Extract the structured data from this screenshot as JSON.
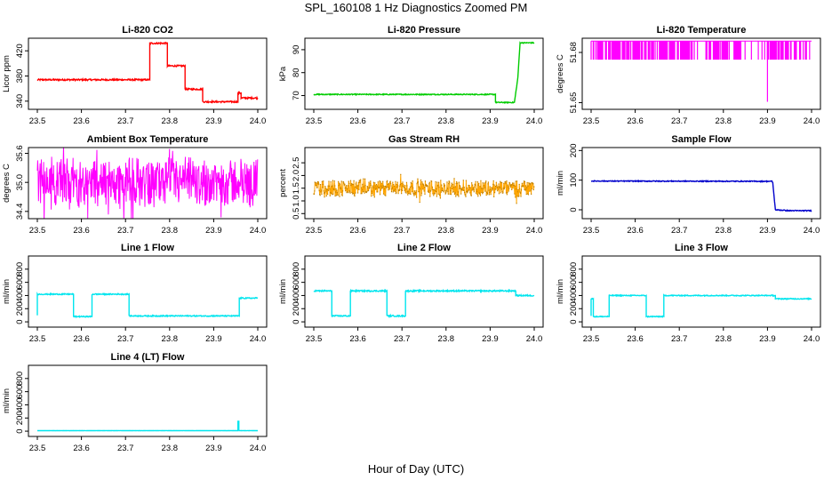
{
  "figure": {
    "title": "SPL_160108  1 Hz Diagnostics Zoomed PM",
    "xlabel": "Hour of Day (UTC)"
  },
  "chart_data": [
    {
      "type": "line",
      "title": "Li-820 CO2",
      "ylabel": "Licor ppm",
      "color": "#ff0000",
      "xlim": [
        23.5,
        24.0
      ],
      "ylim": [
        327,
        440
      ],
      "xticks": [
        "23.5",
        "23.6",
        "23.7",
        "23.8",
        "23.9",
        "24.0"
      ],
      "yticks": [
        340,
        380,
        420
      ],
      "series": [
        {
          "x": [
            23.5,
            23.755,
            23.755,
            23.795,
            23.795,
            23.835,
            23.835,
            23.875,
            23.875,
            23.955,
            23.955,
            23.962,
            23.962,
            24.0
          ],
          "y": [
            374,
            374,
            432,
            432,
            396,
            396,
            359,
            359,
            339,
            339,
            353,
            353,
            345,
            345
          ],
          "noise": 1.2
        }
      ]
    },
    {
      "type": "line",
      "title": "Li-820 Pressure",
      "ylabel": "kPa",
      "color": "#00cc00",
      "xlim": [
        23.5,
        24.0
      ],
      "ylim": [
        64,
        95
      ],
      "xticks": [
        "23.5",
        "23.6",
        "23.7",
        "23.8",
        "23.9",
        "24.0"
      ],
      "yticks": [
        70,
        80,
        90
      ],
      "series": [
        {
          "x": [
            23.5,
            23.912,
            23.912,
            23.955,
            23.963,
            23.968,
            24.0
          ],
          "y": [
            70.5,
            70.5,
            67,
            67,
            78,
            93,
            93
          ],
          "noise": 0.2
        }
      ]
    },
    {
      "type": "line",
      "title": "Li-820 Temperature",
      "ylabel": "degrees C",
      "color": "#ff00ff",
      "xlim": [
        23.5,
        24.0
      ],
      "ylim": [
        51.646,
        51.6885
      ],
      "xticks": [
        "23.5",
        "23.6",
        "23.7",
        "23.8",
        "23.9",
        "24.0"
      ],
      "yticks": [
        "51.65",
        "51.68"
      ],
      "series": [
        {
          "pattern": "flicker",
          "base": 51.6868,
          "low": 51.6757,
          "spike_at": 23.9,
          "spike_value": 51.6505
        }
      ]
    },
    {
      "type": "line",
      "title": "Ambient Box Temperature",
      "ylabel": "degrees C",
      "color": "#ff00ff",
      "xlim": [
        23.5,
        24.0
      ],
      "ylim": [
        34.25,
        35.72
      ],
      "xticks": [
        "23.5",
        "23.6",
        "23.7",
        "23.8",
        "23.9",
        "24.0"
      ],
      "yticks": [
        "34.4",
        "35.0",
        "35.6"
      ],
      "series": [
        {
          "pattern": "band",
          "center": 35.0,
          "amplitude": 0.45
        }
      ]
    },
    {
      "type": "line",
      "title": "Gas Stream RH",
      "ylabel": "percent",
      "color": "#ffa500",
      "xlim": [
        23.5,
        24.0
      ],
      "ylim": [
        0.3,
        3.1
      ],
      "xticks": [
        "23.5",
        "23.6",
        "23.7",
        "23.8",
        "23.9",
        "24.0"
      ],
      "yticks": [
        "0.5",
        "1.0",
        "1.5",
        "2.0",
        "2.5"
      ],
      "series": [
        {
          "pattern": "band",
          "center": 1.5,
          "amplitude": 0.3,
          "dots": true
        }
      ]
    },
    {
      "type": "line",
      "title": "Sample Flow",
      "ylabel": "ml/min",
      "color": "#0000cc",
      "xlim": [
        23.5,
        24.0
      ],
      "ylim": [
        -30,
        210
      ],
      "xticks": [
        "23.5",
        "23.6",
        "23.7",
        "23.8",
        "23.9",
        "24.0"
      ],
      "yticks": [
        0,
        100,
        200
      ],
      "series": [
        {
          "x": [
            23.5,
            23.91,
            23.912,
            23.918,
            23.95,
            24.0
          ],
          "y": [
            97,
            96,
            92,
            0,
            -3,
            -3
          ],
          "noise": 1.5
        }
      ]
    },
    {
      "type": "line",
      "title": "Line 1 Flow",
      "ylabel": "ml/min",
      "color": "#00e5ee",
      "xlim": [
        23.5,
        24.0
      ],
      "ylim": [
        -80,
        1000
      ],
      "xticks": [
        "23.5",
        "23.6",
        "23.7",
        "23.8",
        "23.9",
        "24.0"
      ],
      "yticks": [
        0,
        200,
        400,
        600,
        800
      ],
      "series": [
        {
          "x": [
            23.5,
            23.5,
            23.582,
            23.582,
            23.624,
            23.624,
            23.708,
            23.708,
            23.958,
            23.958,
            24.0
          ],
          "y": [
            100,
            420,
            420,
            80,
            80,
            420,
            420,
            90,
            90,
            360,
            360
          ],
          "noise": 8
        }
      ]
    },
    {
      "type": "line",
      "title": "Line 2 Flow",
      "ylabel": "ml/min",
      "color": "#00e5ee",
      "xlim": [
        23.5,
        24.0
      ],
      "ylim": [
        -80,
        1000
      ],
      "xticks": [
        "23.5",
        "23.6",
        "23.7",
        "23.8",
        "23.9",
        "24.0"
      ],
      "yticks": [
        0,
        200,
        400,
        600,
        800
      ],
      "series": [
        {
          "x": [
            23.5,
            23.541,
            23.541,
            23.583,
            23.583,
            23.666,
            23.666,
            23.708,
            23.708,
            23.958,
            23.958,
            24.0
          ],
          "y": [
            470,
            470,
            90,
            90,
            470,
            470,
            90,
            90,
            470,
            470,
            400,
            400
          ],
          "noise": 10
        }
      ]
    },
    {
      "type": "line",
      "title": "Line 3 Flow",
      "ylabel": "ml/min",
      "color": "#00e5ee",
      "xlim": [
        23.5,
        24.0
      ],
      "ylim": [
        -80,
        1000
      ],
      "xticks": [
        "23.5",
        "23.6",
        "23.7",
        "23.8",
        "23.9",
        "24.0"
      ],
      "yticks": [
        0,
        200,
        400,
        600,
        800
      ],
      "series": [
        {
          "x": [
            23.5,
            23.5,
            23.505,
            23.505,
            23.541,
            23.541,
            23.625,
            23.625,
            23.665,
            23.665,
            23.918,
            23.918,
            24.0
          ],
          "y": [
            90,
            350,
            350,
            80,
            80,
            400,
            400,
            80,
            80,
            400,
            400,
            350,
            350
          ],
          "noise": 7
        }
      ]
    },
    {
      "type": "line",
      "title": "Line 4 (LT) Flow",
      "ylabel": "ml/min",
      "color": "#00e5ee",
      "xlim": [
        23.5,
        24.0
      ],
      "ylim": [
        -80,
        1000
      ],
      "xticks": [
        "23.5",
        "23.6",
        "23.7",
        "23.8",
        "23.9",
        "24.0"
      ],
      "yticks": [
        0,
        200,
        400,
        600,
        800
      ],
      "series": [
        {
          "x": [
            23.5,
            23.955,
            23.955,
            23.957,
            23.957,
            24.0
          ],
          "y": [
            8,
            8,
            150,
            150,
            8,
            8
          ],
          "noise": 1
        }
      ]
    }
  ]
}
